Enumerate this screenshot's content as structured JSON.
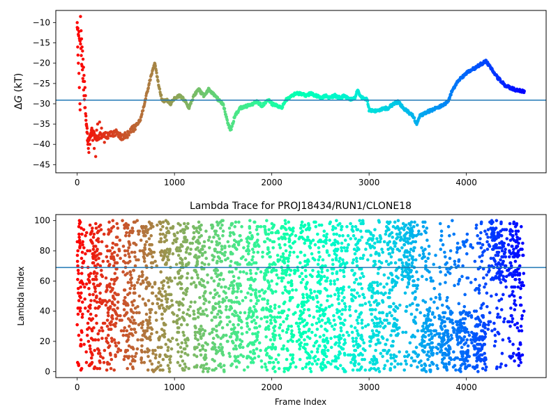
{
  "chart_data": [
    {
      "type": "scatter",
      "title": "",
      "xlabel": "",
      "ylabel_prefix": "Δ",
      "ylabel_var": "G",
      "ylabel_suffix": " (kT)",
      "xlim": [
        -220,
        4820
      ],
      "ylim": [
        -47,
        -7
      ],
      "xticks": [
        0,
        1000,
        2000,
        3000,
        4000
      ],
      "yticks": [
        -45,
        -40,
        -35,
        -30,
        -25,
        -20,
        -15,
        -10
      ],
      "hline": -29.1,
      "hline_color": "#1f77b4",
      "colormap": "rainbow (reversed along frame index)",
      "path": [
        [
          0,
          -11
        ],
        [
          30,
          -14
        ],
        [
          70,
          -28
        ],
        [
          110,
          -39
        ],
        [
          150,
          -37
        ],
        [
          200,
          -38.5
        ],
        [
          260,
          -37.5
        ],
        [
          320,
          -38
        ],
        [
          400,
          -37
        ],
        [
          460,
          -38.2
        ],
        [
          520,
          -37.5
        ],
        [
          600,
          -35.5
        ],
        [
          650,
          -34
        ],
        [
          700,
          -29
        ],
        [
          760,
          -23
        ],
        [
          800,
          -20
        ],
        [
          840,
          -26
        ],
        [
          880,
          -29.5
        ],
        [
          920,
          -29
        ],
        [
          960,
          -30
        ],
        [
          1000,
          -28.5
        ],
        [
          1050,
          -28
        ],
        [
          1100,
          -29
        ],
        [
          1150,
          -31
        ],
        [
          1200,
          -28
        ],
        [
          1250,
          -26.5
        ],
        [
          1300,
          -28
        ],
        [
          1350,
          -26.5
        ],
        [
          1400,
          -27.5
        ],
        [
          1450,
          -29
        ],
        [
          1500,
          -30
        ],
        [
          1550,
          -35
        ],
        [
          1580,
          -36.5
        ],
        [
          1620,
          -33
        ],
        [
          1680,
          -31
        ],
        [
          1750,
          -30.5
        ],
        [
          1800,
          -30
        ],
        [
          1850,
          -29.5
        ],
        [
          1900,
          -30.5
        ],
        [
          1960,
          -29
        ],
        [
          2000,
          -30
        ],
        [
          2050,
          -30.5
        ],
        [
          2100,
          -31
        ],
        [
          2150,
          -29
        ],
        [
          2200,
          -28
        ],
        [
          2250,
          -27.5
        ],
        [
          2300,
          -27.5
        ],
        [
          2350,
          -28
        ],
        [
          2400,
          -27.5
        ],
        [
          2450,
          -28
        ],
        [
          2500,
          -28.5
        ],
        [
          2550,
          -28
        ],
        [
          2600,
          -28.5
        ],
        [
          2650,
          -28
        ],
        [
          2700,
          -28.5
        ],
        [
          2750,
          -28
        ],
        [
          2800,
          -29
        ],
        [
          2860,
          -28.5
        ],
        [
          2880,
          -26.5
        ],
        [
          2920,
          -28.5
        ],
        [
          2980,
          -29
        ],
        [
          3000,
          -31.5
        ],
        [
          3050,
          -31.8
        ],
        [
          3100,
          -31.5
        ],
        [
          3200,
          -31
        ],
        [
          3250,
          -30
        ],
        [
          3300,
          -29.5
        ],
        [
          3350,
          -31
        ],
        [
          3400,
          -32
        ],
        [
          3450,
          -33
        ],
        [
          3490,
          -35
        ],
        [
          3520,
          -33
        ],
        [
          3600,
          -32
        ],
        [
          3700,
          -31
        ],
        [
          3780,
          -30
        ],
        [
          3820,
          -29
        ],
        [
          3850,
          -27
        ],
        [
          3900,
          -25
        ],
        [
          3950,
          -23.5
        ],
        [
          4000,
          -22.5
        ],
        [
          4100,
          -21
        ],
        [
          4200,
          -19.5
        ],
        [
          4250,
          -21
        ],
        [
          4300,
          -23
        ],
        [
          4400,
          -25.5
        ],
        [
          4500,
          -26.5
        ],
        [
          4600,
          -27
        ]
      ],
      "early_scatter": [
        [
          0,
          -10
        ],
        [
          5,
          -16
        ],
        [
          8,
          -18
        ],
        [
          12,
          -20
        ],
        [
          18,
          -22.5
        ],
        [
          22,
          -26
        ],
        [
          28,
          -30
        ],
        [
          30,
          -31.5
        ],
        [
          34,
          -8.5
        ],
        [
          40,
          -12
        ],
        [
          45,
          -14
        ],
        [
          50,
          -16
        ],
        [
          55,
          -17
        ],
        [
          60,
          -19
        ],
        [
          65,
          -21
        ],
        [
          70,
          -23
        ],
        [
          75,
          -24.5
        ],
        [
          80,
          -26
        ],
        [
          85,
          -28
        ],
        [
          90,
          -33
        ],
        [
          95,
          -35
        ],
        [
          100,
          -37
        ],
        [
          105,
          -39
        ],
        [
          110,
          -40
        ],
        [
          115,
          -41
        ],
        [
          120,
          -42
        ],
        [
          130,
          -40
        ],
        [
          140,
          -38
        ],
        [
          150,
          -36
        ],
        [
          160,
          -39
        ],
        [
          175,
          -41
        ],
        [
          190,
          -43
        ],
        [
          200,
          -36.5
        ],
        [
          210,
          -35
        ],
        [
          230,
          -34.5
        ],
        [
          250,
          -36
        ],
        [
          280,
          -39.5
        ]
      ]
    },
    {
      "type": "scatter",
      "title": "Lambda Trace for PROJ18434/RUN1/CLONE18",
      "xlabel": "Frame Index",
      "ylabel": "Lambda Index",
      "xlim": [
        -220,
        4820
      ],
      "ylim": [
        -4,
        104
      ],
      "xticks": [
        0,
        1000,
        2000,
        3000,
        4000
      ],
      "yticks": [
        0,
        20,
        40,
        60,
        80,
        100
      ],
      "hline": 69,
      "hline_color": "#1f77b4",
      "colormap": "rainbow (reversed along frame index)",
      "n_points": 4600,
      "x_range": [
        0,
        4600
      ],
      "y_range": [
        0,
        100
      ],
      "dense_bands": [
        {
          "x": [
            750,
            900
          ],
          "y": [
            0,
            100
          ]
        },
        {
          "x": [
            1400,
            1550
          ],
          "y": [
            0,
            100
          ]
        },
        {
          "x": [
            3300,
            3470
          ],
          "y": [
            60,
            100
          ]
        },
        {
          "x": [
            3500,
            4200
          ],
          "y": [
            0,
            40
          ]
        },
        {
          "x": [
            4200,
            4550
          ],
          "y": [
            60,
            100
          ]
        }
      ]
    }
  ]
}
